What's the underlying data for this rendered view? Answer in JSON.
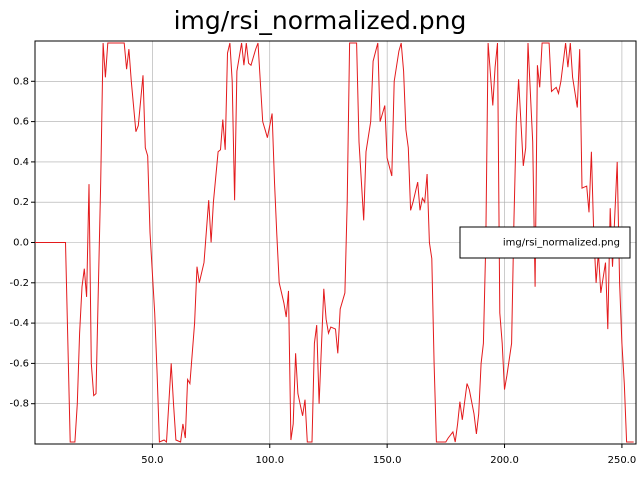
{
  "chart_data": {
    "type": "line",
    "title": "img/rsi_normalized.png",
    "x": [
      0,
      13,
      15,
      17,
      18,
      19,
      20,
      21,
      22,
      23,
      24,
      25,
      26,
      28,
      29,
      30,
      31,
      38,
      39,
      40,
      41,
      43,
      44,
      46,
      47,
      48,
      49,
      51,
      52,
      53,
      55,
      56,
      58,
      59,
      60,
      62,
      63,
      64,
      65,
      66,
      68,
      69,
      70,
      72,
      74,
      75,
      76,
      78,
      79,
      80,
      81,
      82,
      83,
      84,
      85,
      86,
      88,
      89,
      90,
      91,
      92,
      94,
      95,
      97,
      98,
      99,
      101,
      102,
      103,
      104,
      106,
      107,
      108,
      109,
      110,
      111,
      112,
      114,
      115,
      116,
      118,
      119,
      120,
      121,
      123,
      124,
      125,
      126,
      128,
      129,
      130,
      132,
      133,
      134,
      137,
      138,
      140,
      141,
      143,
      144,
      146,
      147,
      148,
      149,
      150,
      152,
      153,
      155,
      156,
      157,
      158,
      159,
      160,
      161,
      163,
      164,
      165,
      166,
      167,
      168,
      169,
      170,
      171,
      175,
      176,
      178,
      179,
      180,
      181,
      182,
      184,
      185,
      187,
      188,
      189,
      190,
      191,
      192,
      193,
      195,
      196,
      197,
      198,
      199,
      200,
      201,
      203,
      204,
      205,
      206,
      208,
      209,
      210,
      212,
      213,
      214,
      215,
      216,
      219,
      220,
      222,
      223,
      224,
      226,
      227,
      228,
      229,
      231,
      232,
      233,
      235,
      236,
      237,
      238,
      239,
      240,
      241,
      243,
      244,
      245,
      246,
      248,
      249,
      250,
      251,
      252,
      255
    ],
    "series": [
      {
        "name": "img/rsi_normalized.png",
        "color": "#e31a1c",
        "values": [
          0,
          0,
          -0.99,
          -0.99,
          -0.8,
          -0.45,
          -0.22,
          -0.13,
          -0.27,
          0.29,
          -0.6,
          -0.76,
          -0.75,
          0.3,
          0.99,
          0.82,
          0.99,
          0.99,
          0.86,
          0.96,
          0.8,
          0.55,
          0.58,
          0.83,
          0.47,
          0.43,
          0.05,
          -0.35,
          -0.65,
          -0.99,
          -0.98,
          -0.99,
          -0.6,
          -0.8,
          -0.98,
          -0.99,
          -0.9,
          -0.97,
          -0.68,
          -0.7,
          -0.4,
          -0.12,
          -0.2,
          -0.1,
          0.21,
          0,
          0.2,
          0.45,
          0.46,
          0.61,
          0.46,
          0.94,
          0.99,
          0.8,
          0.21,
          0.85,
          0.99,
          0.88,
          0.99,
          0.89,
          0.88,
          0.96,
          0.99,
          0.6,
          0.56,
          0.52,
          0.64,
          0.3,
          0.04,
          -0.2,
          -0.3,
          -0.37,
          -0.24,
          -0.98,
          -0.9,
          -0.55,
          -0.75,
          -0.86,
          -0.78,
          -0.99,
          -0.99,
          -0.5,
          -0.41,
          -0.8,
          -0.23,
          -0.38,
          -0.45,
          -0.42,
          -0.43,
          -0.55,
          -0.33,
          -0.25,
          0.2,
          0.99,
          0.99,
          0.5,
          0.11,
          0.45,
          0.6,
          0.9,
          0.99,
          0.6,
          0.64,
          0.68,
          0.42,
          0.33,
          0.8,
          0.95,
          0.99,
          0.85,
          0.56,
          0.47,
          0.16,
          0.2,
          0.3,
          0.16,
          0.22,
          0.2,
          0.34,
          0,
          -0.08,
          -0.6,
          -0.99,
          -0.99,
          -0.97,
          -0.94,
          -0.99,
          -0.9,
          -0.79,
          -0.88,
          -0.7,
          -0.73,
          -0.85,
          -0.95,
          -0.85,
          -0.6,
          -0.5,
          0,
          0.99,
          0.68,
          0.87,
          0.99,
          -0.35,
          -0.5,
          -0.73,
          -0.66,
          -0.5,
          0.1,
          0.6,
          0.81,
          0.38,
          0.47,
          0.99,
          0.5,
          -0.22,
          0.88,
          0.77,
          0.99,
          0.99,
          0.75,
          0.77,
          0.74,
          0.8,
          0.99,
          0.87,
          0.99,
          0.82,
          0.67,
          0.96,
          0.27,
          0.28,
          0.15,
          0.45,
          0.05,
          -0.2,
          -0.05,
          -0.25,
          -0.1,
          -0.43,
          0.17,
          -0.12,
          0.4,
          -0.2,
          -0.5,
          -0.7,
          -0.99,
          -0.99
        ]
      }
    ],
    "xlim": [
      0,
      256
    ],
    "ylim": [
      -1,
      1
    ],
    "xticks": [
      {
        "value": 50,
        "label": "50.0"
      },
      {
        "value": 100,
        "label": "100.0"
      },
      {
        "value": 150,
        "label": "150.0"
      },
      {
        "value": 200,
        "label": "200.0"
      },
      {
        "value": 250,
        "label": "250.0"
      }
    ],
    "yticks": [
      -0.8,
      -0.6,
      -0.4,
      -0.2,
      {
        "value": 0,
        "label": "0.0"
      },
      0.2,
      0.4,
      0.6,
      0.8
    ],
    "grid": true,
    "legend": "right"
  }
}
